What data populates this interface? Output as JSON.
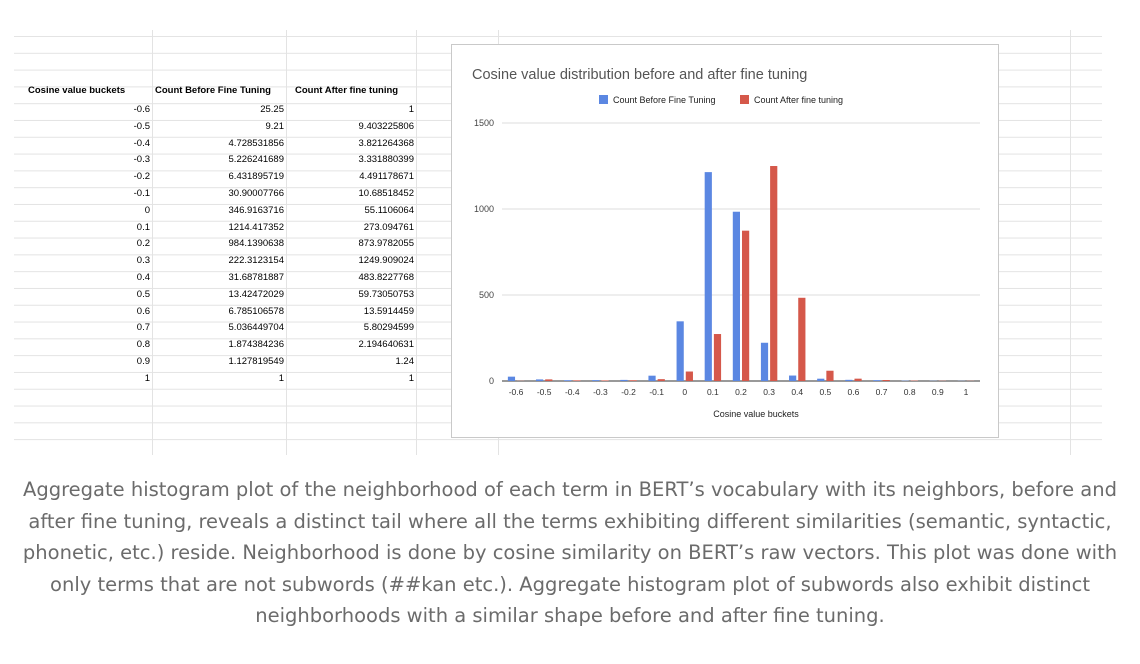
{
  "sheet": {
    "headers": [
      "Cosine value buckets",
      "Count Before Fine Tuning",
      "Count After fine tuning"
    ],
    "buckets": [
      "-0.6",
      "-0.5",
      "-0.4",
      "-0.3",
      "-0.2",
      "-0.1",
      "0",
      "0.1",
      "0.2",
      "0.3",
      "0.4",
      "0.5",
      "0.6",
      "0.7",
      "0.8",
      "0.9",
      "1"
    ],
    "before": [
      "25.25",
      "9.21",
      "4.728531856",
      "5.226241689",
      "6.431895719",
      "30.90007766",
      "346.9163716",
      "1214.417352",
      "984.1390638",
      "222.3123154",
      "31.68781887",
      "13.42472029",
      "6.785106578",
      "5.036449704",
      "1.874384236",
      "1.127819549",
      "1"
    ],
    "after": [
      "1",
      "9.403225806",
      "3.821264368",
      "3.331880399",
      "4.491178671",
      "10.68518452",
      "55.1106064",
      "273.094761",
      "873.9782055",
      "1249.909024",
      "483.8227768",
      "59.73050753",
      "13.5914459",
      "5.80294599",
      "2.194640631",
      "1.24",
      "1"
    ]
  },
  "chart_data": {
    "type": "bar",
    "title": "Cosine value distribution before and after fine tuning",
    "xlabel": "Cosine value buckets",
    "ylabel": "",
    "categories": [
      "-0.6",
      "-0.5",
      "-0.4",
      "-0.3",
      "-0.2",
      "-0.1",
      "0",
      "0.1",
      "0.2",
      "0.3",
      "0.4",
      "0.5",
      "0.6",
      "0.7",
      "0.8",
      "0.9",
      "1"
    ],
    "series": [
      {
        "name": "Count Before Fine Tuning",
        "color": "#5b87e2",
        "values": [
          25.25,
          9.21,
          4.728531856,
          5.226241689,
          6.431895719,
          30.90007766,
          346.9163716,
          1214.417352,
          984.1390638,
          222.3123154,
          31.68781887,
          13.42472029,
          6.785106578,
          5.036449704,
          1.874384236,
          1.127819549,
          1
        ]
      },
      {
        "name": "Count After fine tuning",
        "color": "#d5584a",
        "values": [
          1,
          9.403225806,
          3.821264368,
          3.331880399,
          4.491178671,
          10.68518452,
          55.1106064,
          273.094761,
          873.9782055,
          1249.909024,
          483.8227768,
          59.73050753,
          13.5914459,
          5.80294599,
          2.194640631,
          1.24,
          1
        ]
      }
    ],
    "ylim": [
      0,
      1500
    ],
    "yticks": [
      0,
      500,
      1000,
      1500
    ],
    "legend": "top",
    "grid": true
  },
  "caption": "Aggregate histogram plot of the neighborhood of each term in BERT’s vocabulary with its neighbors, before and after fine tuning, reveals a distinct tail where all the terms exhibiting different similarities (semantic, syntactic, phonetic, etc.) reside. Neighborhood is done by cosine similarity on BERT’s raw vectors. This plot was done with only terms that are not subwords (##kan etc.). Aggregate histogram plot of subwords also exhibit distinct neighborhoods with a similar shape before and after fine tuning."
}
